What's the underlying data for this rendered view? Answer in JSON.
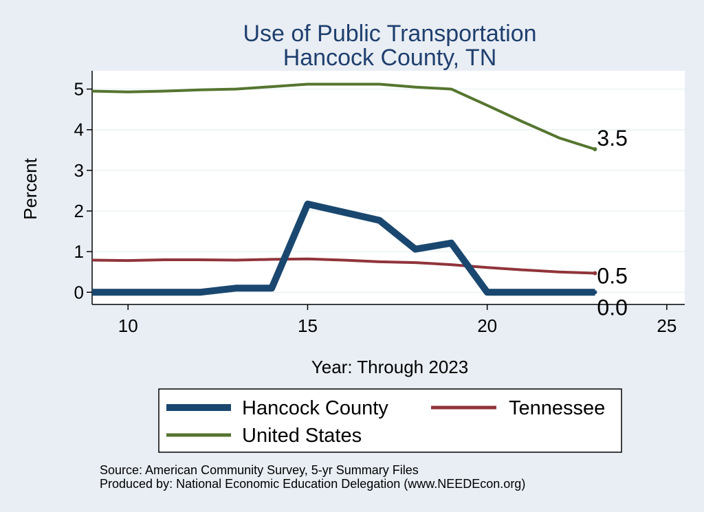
{
  "chart_data": {
    "type": "line",
    "title_lines": [
      "Use of Public Transportation",
      "Hancock County, TN"
    ],
    "xlabel": "Year: Through 2023",
    "ylabel": "Percent",
    "xlim": [
      9,
      25.5
    ],
    "ylim": [
      -0.3,
      5.45
    ],
    "xticks": [
      10,
      15,
      20,
      25
    ],
    "yticks": [
      0,
      1,
      2,
      3,
      4,
      5
    ],
    "grid": "horizontal",
    "series": [
      {
        "name": "Hancock County",
        "color": "#1a476f",
        "x": [
          9,
          10,
          11,
          12,
          13,
          14,
          15,
          16,
          17,
          18,
          19,
          20,
          21,
          22,
          23
        ],
        "y": [
          0,
          0,
          0,
          0,
          0.1,
          0.1,
          2.17,
          1.97,
          1.77,
          1.06,
          1.21,
          0,
          0,
          0,
          0
        ],
        "end_label": "0.0"
      },
      {
        "name": "Tennessee",
        "color": "#90353b",
        "x": [
          9,
          10,
          11,
          12,
          13,
          14,
          15,
          16,
          17,
          18,
          19,
          20,
          21,
          22,
          23
        ],
        "y": [
          0.79,
          0.78,
          0.8,
          0.8,
          0.79,
          0.81,
          0.82,
          0.79,
          0.75,
          0.73,
          0.68,
          0.61,
          0.55,
          0.5,
          0.47
        ],
        "end_label": "0.5"
      },
      {
        "name": "United States",
        "color": "#55752f",
        "x": [
          9,
          10,
          11,
          12,
          13,
          14,
          15,
          16,
          17,
          18,
          19,
          20,
          21,
          22,
          23
        ],
        "y": [
          4.95,
          4.93,
          4.95,
          4.98,
          5.0,
          5.06,
          5.12,
          5.12,
          5.12,
          5.05,
          5.0,
          4.6,
          4.19,
          3.8,
          3.52
        ],
        "end_label": "3.5"
      }
    ],
    "legend": {
      "position": "bottom",
      "entries": [
        "Hancock County",
        "Tennessee",
        "United States"
      ]
    },
    "notes": [
      "Source: American Community Survey, 5-yr Summary Files",
      "Produced by: National Economic Education Delegation (www.NEEDEcon.org)"
    ]
  }
}
